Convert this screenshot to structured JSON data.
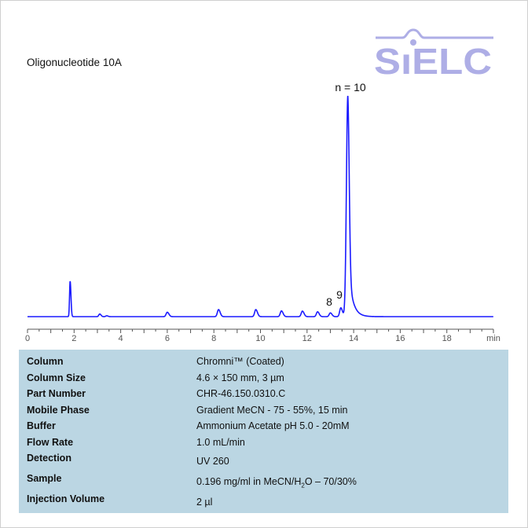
{
  "title": "Oligonucleotide 10A",
  "logo_text": "SIELC",
  "colors": {
    "trace": "#1a1aff",
    "logo": "#aeaee6",
    "table_bg": "#bbd6e3",
    "axis": "#555555"
  },
  "chart_data": {
    "type": "line",
    "xlabel": "min",
    "ylabel": "",
    "xlim": [
      0,
      20
    ],
    "x_ticks": [
      "0",
      "2",
      "4",
      "6",
      "8",
      "10",
      "12",
      "14",
      "16",
      "18"
    ],
    "y_units": "relative (% of largest peak)",
    "grid": false,
    "peaks": [
      {
        "rt": 1.83,
        "height": 16,
        "width": 0.025
      },
      {
        "rt": 3.1,
        "height": 1.2,
        "width": 0.04
      },
      {
        "rt": 3.4,
        "height": 0.4,
        "width": 0.04
      },
      {
        "rt": 6.0,
        "height": 2.0,
        "width": 0.05
      },
      {
        "rt": 8.2,
        "height": 3.2,
        "width": 0.05
      },
      {
        "rt": 9.8,
        "height": 3.2,
        "width": 0.05
      },
      {
        "rt": 10.9,
        "height": 2.6,
        "width": 0.05
      },
      {
        "rt": 11.8,
        "height": 2.5,
        "width": 0.05
      },
      {
        "rt": 12.45,
        "height": 2.2,
        "width": 0.05
      },
      {
        "rt": 13.0,
        "height": 1.7,
        "width": 0.05
      },
      {
        "rt": 13.45,
        "height": 4.0,
        "width": 0.05
      },
      {
        "rt": 13.75,
        "height": 100,
        "width": 0.06
      }
    ],
    "annotations": [
      {
        "text": "n = 10",
        "rt": 13.75
      },
      {
        "text": "8",
        "rt": 13.0
      },
      {
        "text": "9",
        "rt": 13.45
      }
    ]
  },
  "conditions": [
    {
      "label": "Column",
      "value": "Chromni™ (Coated)"
    },
    {
      "label": "Column Size",
      "value": "4.6 × 150 mm, 3 µm"
    },
    {
      "label": "Part Number",
      "value": "CHR-46.150.0310.C"
    },
    {
      "label": "Mobile Phase",
      "value": "Gradient MeCN - 75 - 55%, 15 min"
    },
    {
      "label": "Buffer",
      "value": "Ammonium Acetate pH 5.0  - 20mM"
    },
    {
      "label": "Flow Rate",
      "value": "1.0 mL/min"
    },
    {
      "label": "Detection",
      "value": "UV 260"
    },
    {
      "label": "Sample",
      "value_pre": "0.196 mg/ml in MeCN/H",
      "value_sub": "2",
      "value_post": "O – 70/30%"
    },
    {
      "label": "Injection Volume",
      "value": "2 µl"
    }
  ]
}
